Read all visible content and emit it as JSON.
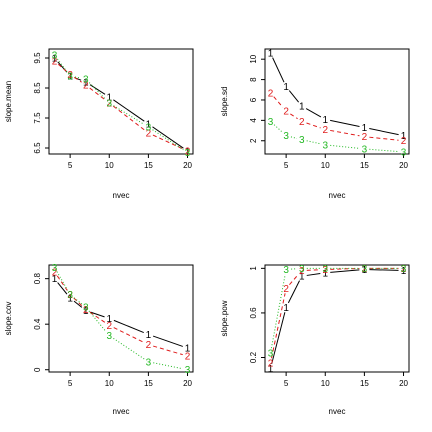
{
  "chart_data": [
    {
      "type": "line",
      "ylabel": "slope.mean",
      "xlabel": "nvec",
      "x": [
        3,
        5,
        7,
        10,
        15,
        20
      ],
      "xticks": [
        5,
        10,
        15,
        20
      ],
      "xlim": [
        2.3,
        20.7
      ],
      "yticks": [
        6.5,
        7.5,
        8.5,
        9.5
      ],
      "ylim": [
        6.3,
        9.8
      ],
      "series": [
        {
          "symbol": "1",
          "color": "#000000",
          "dash": "",
          "values": [
            9.5,
            8.9,
            8.7,
            8.2,
            7.3,
            6.4
          ]
        },
        {
          "symbol": "2",
          "color": "#df1b1b",
          "dash": "4,3",
          "values": [
            9.4,
            8.95,
            8.6,
            8.0,
            7.0,
            6.4
          ]
        },
        {
          "symbol": "3",
          "color": "#22b822",
          "dash": "1,2",
          "values": [
            9.6,
            8.9,
            8.8,
            8.0,
            7.2,
            6.35
          ]
        }
      ]
    },
    {
      "type": "line",
      "ylabel": "slope.sd",
      "xlabel": "nvec",
      "x": [
        3,
        5,
        7,
        10,
        15,
        20
      ],
      "xticks": [
        5,
        10,
        15,
        20
      ],
      "xlim": [
        2.3,
        20.7
      ],
      "yticks": [
        2,
        4,
        6,
        8,
        10
      ],
      "ylim": [
        0.7,
        11.0
      ],
      "series": [
        {
          "symbol": "1",
          "color": "#000000",
          "dash": "",
          "values": [
            10.6,
            7.3,
            5.4,
            4.1,
            3.3,
            2.5
          ]
        },
        {
          "symbol": "2",
          "color": "#df1b1b",
          "dash": "4,3",
          "values": [
            6.7,
            4.9,
            3.9,
            3.1,
            2.4,
            2.0
          ]
        },
        {
          "symbol": "3",
          "color": "#22b822",
          "dash": "1,2",
          "values": [
            3.9,
            2.5,
            2.1,
            1.6,
            1.2,
            0.9
          ]
        }
      ]
    },
    {
      "type": "line",
      "ylabel": "slope.cov",
      "xlabel": "nvec",
      "x": [
        3,
        5,
        7,
        10,
        15,
        20
      ],
      "xticks": [
        5,
        10,
        15,
        20
      ],
      "xlim": [
        2.3,
        20.7
      ],
      "yticks": [
        0.0,
        0.4,
        0.8
      ],
      "ylim": [
        -0.02,
        0.92
      ],
      "series": [
        {
          "symbol": "1",
          "color": "#000000",
          "dash": "",
          "values": [
            0.8,
            0.63,
            0.52,
            0.45,
            0.31,
            0.19
          ]
        },
        {
          "symbol": "2",
          "color": "#df1b1b",
          "dash": "4,3",
          "values": [
            0.86,
            0.66,
            0.53,
            0.39,
            0.22,
            0.12
          ]
        },
        {
          "symbol": "3",
          "color": "#22b822",
          "dash": "1,2",
          "values": [
            0.9,
            0.66,
            0.55,
            0.3,
            0.07,
            0.0
          ]
        }
      ]
    },
    {
      "type": "line",
      "ylabel": "slope.pow",
      "xlabel": "nvec",
      "x": [
        3,
        5,
        7,
        10,
        15,
        20
      ],
      "xticks": [
        5,
        10,
        15,
        20
      ],
      "xlim": [
        2.3,
        20.7
      ],
      "yticks": [
        0.2,
        0.6,
        1.0
      ],
      "ylim": [
        0.07,
        1.03
      ],
      "series": [
        {
          "symbol": "1",
          "color": "#000000",
          "dash": "",
          "values": [
            0.1,
            0.65,
            0.93,
            0.96,
            0.99,
            0.98
          ]
        },
        {
          "symbol": "2",
          "color": "#df1b1b",
          "dash": "4,3",
          "values": [
            0.15,
            0.82,
            0.98,
            0.99,
            1.0,
            1.0
          ]
        },
        {
          "symbol": "3",
          "color": "#22b822",
          "dash": "1,2",
          "values": [
            0.24,
            0.99,
            1.0,
            1.0,
            1.0,
            1.0
          ]
        }
      ]
    }
  ]
}
